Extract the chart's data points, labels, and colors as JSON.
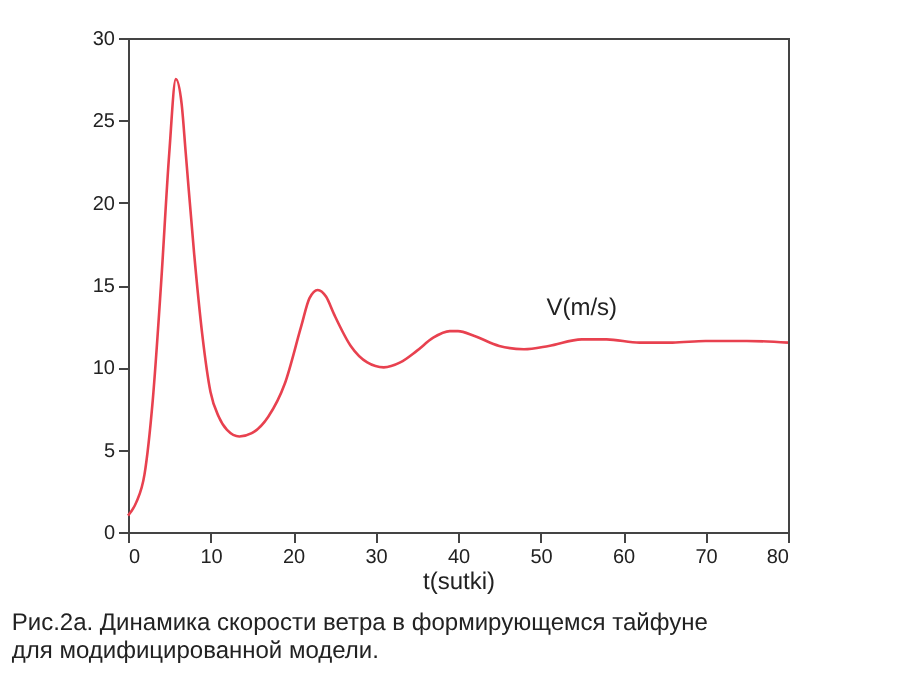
{
  "chart_data": {
    "type": "line",
    "xlabel": "t(sutki)",
    "x": [
      0,
      1,
      2,
      3,
      4,
      5,
      5.8,
      6.5,
      7,
      8,
      9,
      10,
      11,
      12,
      13.5,
      15,
      17,
      19,
      21,
      22,
      23,
      24,
      25,
      27,
      29,
      31,
      33,
      35,
      37,
      39,
      40,
      42,
      45,
      48,
      51,
      55,
      58,
      62,
      66,
      70,
      75,
      80
    ],
    "series": [
      {
        "name": "V(m/s)",
        "color": "#e8414f",
        "values": [
          1,
          1.8,
          3.5,
          8,
          15,
          23,
          27.5,
          26,
          23,
          17,
          12,
          8.5,
          7,
          6.2,
          5.8,
          6,
          7,
          9,
          12.5,
          14.2,
          14.7,
          14.3,
          13.2,
          11.3,
          10.3,
          10,
          10.3,
          11,
          11.8,
          12.2,
          12.2,
          11.9,
          11.3,
          11.1,
          11.3,
          11.7,
          11.7,
          11.5,
          11.5,
          11.6,
          11.6,
          11.5
        ]
      }
    ],
    "xlim": [
      0,
      80
    ],
    "xticks": [
      0,
      10,
      20,
      30,
      40,
      50,
      60,
      70,
      80
    ],
    "ylim": [
      0,
      30
    ],
    "yticks": [
      0,
      5,
      10,
      15,
      20,
      25,
      30
    ],
    "grid": false,
    "marker": "none",
    "line_style": "solid",
    "annotations": [
      "Рис.2а. Динамика скорости ветра в формирующемся тайфуне для модифицированной модели."
    ]
  }
}
